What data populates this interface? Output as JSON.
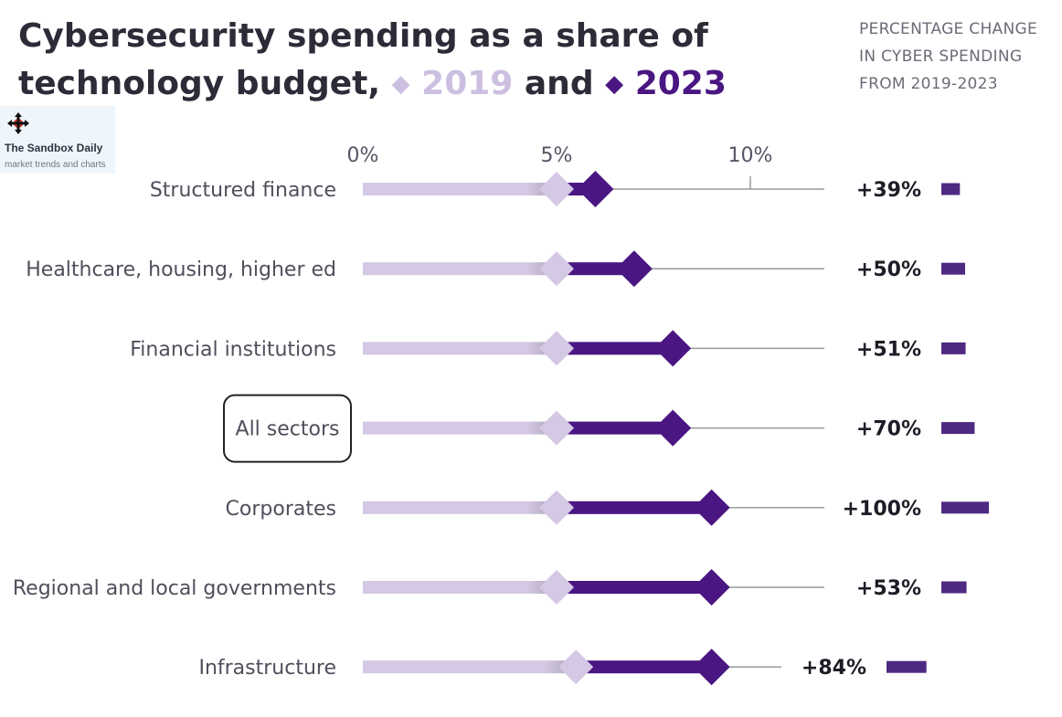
{
  "header": {
    "title_prefix": "Cybersecurity spending as a share of technology budget,",
    "year_2019": "2019",
    "and_word": "and",
    "year_2023": "2023",
    "diamond_glyph": "◆",
    "right_header_lines": [
      "PERCENTAGE CHANGE",
      "IN CYBER SPENDING",
      "FROM 2019-2023"
    ]
  },
  "badge": {
    "icon": "move-icon",
    "name": "The Sandbox Daily",
    "tagline": "market trends and charts"
  },
  "colors": {
    "series_2019": "#d4c8e4",
    "series_2023": "#4a1682",
    "change_bar": "#4e2a82",
    "axis_line": "#9a9a9a",
    "highlight_border": "#222222"
  },
  "chart_data": {
    "type": "dumbbell",
    "x_axis": {
      "min": 0,
      "max": 12,
      "ticks": [
        0,
        5,
        10
      ],
      "tick_labels": [
        "0%",
        "5%",
        "10%"
      ],
      "unit": "%"
    },
    "highlighted_category": "All sectors",
    "rows": [
      {
        "category": "Structured finance",
        "value_2019": 5.0,
        "value_2023": 6.0,
        "change_label": "+39%",
        "change": 39
      },
      {
        "category": "Healthcare, housing, higher ed",
        "value_2019": 5.0,
        "value_2023": 7.0,
        "change_label": "+50%",
        "change": 50
      },
      {
        "category": "Financial institutions",
        "value_2019": 5.0,
        "value_2023": 8.0,
        "change_label": "+51%",
        "change": 51
      },
      {
        "category": "All sectors",
        "value_2019": 5.0,
        "value_2023": 8.0,
        "change_label": "+70%",
        "change": 70
      },
      {
        "category": "Corporates",
        "value_2019": 5.0,
        "value_2023": 9.0,
        "change_label": "+100%",
        "change": 100
      },
      {
        "category": "Regional and local governments",
        "value_2019": 5.0,
        "value_2023": 9.0,
        "change_label": "+53%",
        "change": 53
      },
      {
        "category": "Infrastructure",
        "value_2019": 5.5,
        "value_2023": 9.0,
        "change_label": "+84%",
        "change": 84
      }
    ]
  }
}
